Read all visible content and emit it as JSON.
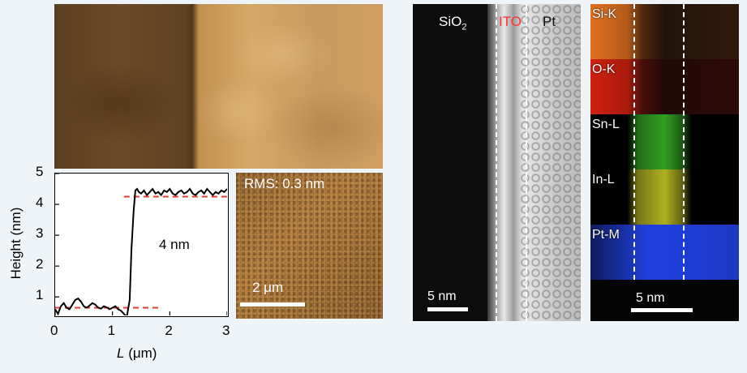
{
  "afm": {
    "profile_label": "4 nm",
    "rms_label": "RMS: 0.3 nm",
    "scale_label": "2 μm"
  },
  "chart_data": {
    "type": "line",
    "xlabel_var": "L",
    "xlabel_unit": " (μm)",
    "ylabel": "Height (nm)",
    "xlim": [
      0,
      3
    ],
    "ylim": [
      0.4,
      5
    ],
    "xticks": [
      "0",
      "1",
      "2",
      "3"
    ],
    "yticks": [
      "1",
      "2",
      "3",
      "4",
      "5"
    ],
    "series": [
      {
        "x": [
          0,
          0.05,
          0.1,
          0.15,
          0.2,
          0.25,
          0.3,
          0.35,
          0.4,
          0.45,
          0.5,
          0.55,
          0.6,
          0.65,
          0.7,
          0.75,
          0.8,
          0.85,
          0.9,
          0.95,
          1.0,
          1.05,
          1.1,
          1.15,
          1.2,
          1.25,
          1.3,
          1.33,
          1.37,
          1.4,
          1.43,
          1.46,
          1.5,
          1.55,
          1.6,
          1.65,
          1.7,
          1.75,
          1.8,
          1.85,
          1.9,
          1.95,
          2.0,
          2.05,
          2.1,
          2.15,
          2.2,
          2.25,
          2.3,
          2.35,
          2.4,
          2.45,
          2.5,
          2.55,
          2.6,
          2.65,
          2.7,
          2.75,
          2.8,
          2.85,
          2.9,
          2.95,
          3.0
        ],
        "y": [
          0.6,
          0.45,
          0.7,
          0.8,
          0.65,
          0.6,
          0.75,
          0.9,
          0.95,
          0.85,
          0.7,
          0.65,
          0.72,
          0.8,
          0.75,
          0.65,
          0.62,
          0.7,
          0.66,
          0.6,
          0.65,
          0.7,
          0.6,
          0.55,
          0.45,
          0.35,
          0.9,
          2.5,
          3.8,
          4.45,
          4.5,
          4.4,
          4.35,
          4.45,
          4.3,
          4.4,
          4.5,
          4.35,
          4.4,
          4.3,
          4.45,
          4.4,
          4.5,
          4.35,
          4.3,
          4.4,
          4.45,
          4.35,
          4.4,
          4.5,
          4.35,
          4.3,
          4.4,
          4.45,
          4.35,
          4.5,
          4.4,
          4.3,
          4.4,
          4.35,
          4.45,
          4.4,
          4.5
        ]
      }
    ],
    "reference_lines": [
      {
        "y": 0.65,
        "x_range": [
          0,
          1.85
        ],
        "style": "dashed",
        "color": "#e53935"
      },
      {
        "y": 4.25,
        "x_range": [
          1.2,
          3.0
        ],
        "style": "dashed",
        "color": "#e53935"
      }
    ]
  },
  "tem": {
    "labels": {
      "sio2_base": "SiO",
      "sio2_sub": "2",
      "ito": "ITO",
      "pt": "Pt"
    },
    "scale_label": "5 nm",
    "ito_color": "#ff3030"
  },
  "eds": {
    "bands": [
      {
        "label": "Si-K",
        "color": "#e07020"
      },
      {
        "label": "O-K",
        "color": "#d02010"
      },
      {
        "label": "Sn-L",
        "color": "#30a020"
      },
      {
        "label": "In-L",
        "color": "#b0b020"
      },
      {
        "label": "Pt-M",
        "color": "#2040e0"
      }
    ],
    "scale_label": "5 nm"
  }
}
